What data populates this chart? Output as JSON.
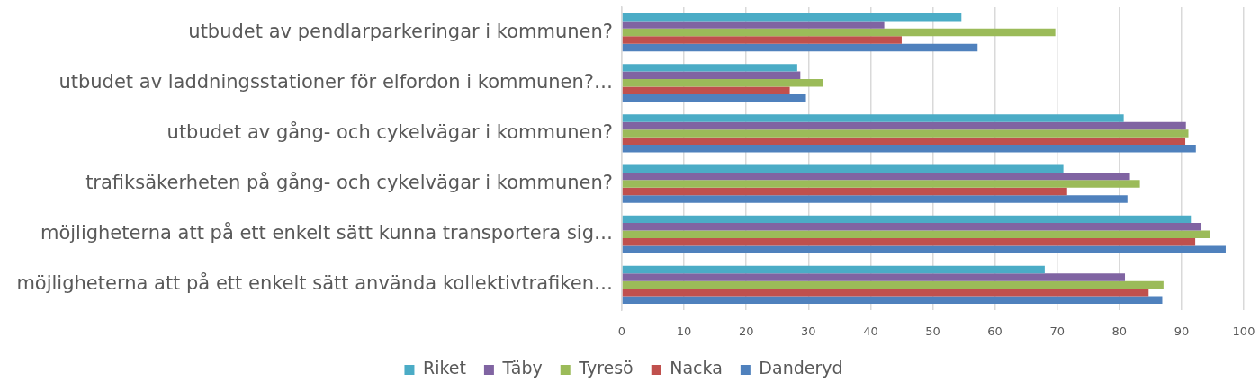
{
  "chart_data": {
    "type": "bar",
    "orientation": "horizontal",
    "categories": [
      "utbudet av pendlarparkeringar i kommunen?",
      "utbudet av laddningsstationer för elfordon i kommunen?…",
      "utbudet av gång- och cykelvägar i kommunen?",
      "trafiksäkerheten på gång- och cykelvägar i kommunen?",
      "möjligheterna att på ett enkelt sätt kunna transportera sig…",
      "möjligheterna att på ett enkelt sätt använda kollektivtrafiken…"
    ],
    "series": [
      {
        "name": "Riket",
        "color": "#4bacc6",
        "values": [
          54.6,
          28.2,
          80.7,
          71.0,
          91.5,
          68.0
        ]
      },
      {
        "name": "Täby",
        "color": "#8064a2",
        "values": [
          42.2,
          28.7,
          90.7,
          81.7,
          93.2,
          80.9
        ]
      },
      {
        "name": "Tyresö",
        "color": "#9bbb59",
        "values": [
          69.7,
          32.3,
          91.1,
          83.3,
          94.6,
          87.1
        ]
      },
      {
        "name": "Nacka",
        "color": "#c0504d",
        "values": [
          45.0,
          27.0,
          90.6,
          71.6,
          92.2,
          84.7
        ]
      },
      {
        "name": "Danderyd",
        "color": "#4f81bd",
        "values": [
          57.2,
          29.6,
          92.3,
          81.3,
          97.1,
          86.9
        ]
      }
    ],
    "xlim": [
      0,
      100
    ],
    "xticks": [
      0,
      10,
      20,
      30,
      40,
      50,
      60,
      70,
      80,
      90,
      100
    ],
    "grid": "x",
    "legend": "bottom"
  }
}
